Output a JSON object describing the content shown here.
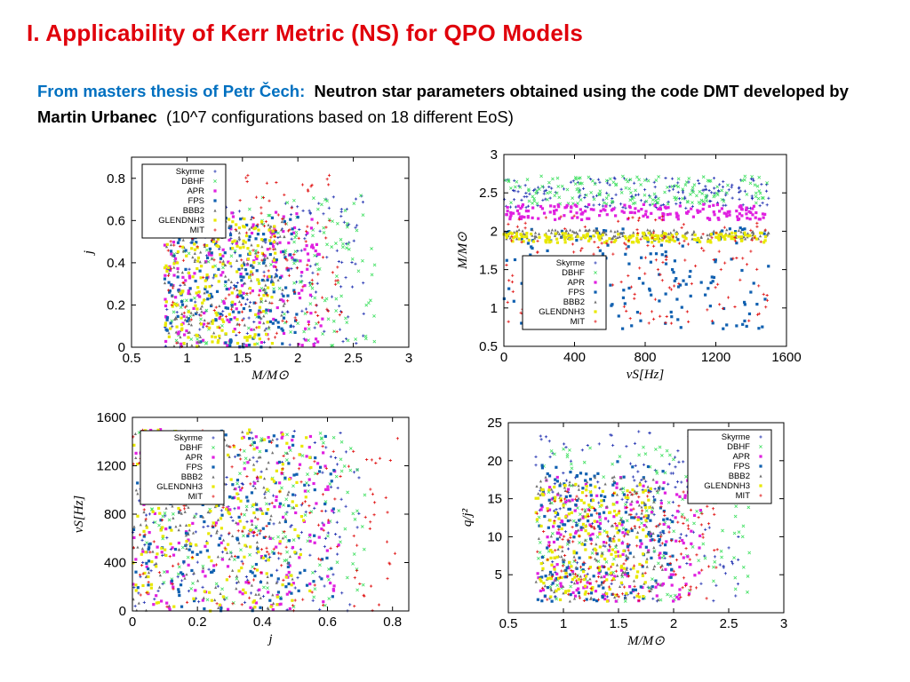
{
  "header": {
    "title": "I. Applicability of Kerr Metric (NS) for QPO Models",
    "intro_blue": "From masters thesis of Petr Čech:",
    "intro_bold": "Neutron star parameters obtained using the code DMT developed by Martin Urbanec",
    "intro_plain": "(10^7 configurations based on 18 different EoS)"
  },
  "chart_data": [
    {
      "type": "scatter",
      "xlabel": "M/M⊙",
      "ylabel": "j",
      "xlim": [
        0.5,
        3
      ],
      "ylim": [
        0,
        0.9
      ],
      "xticks": [
        0.5,
        1,
        1.5,
        2,
        2.5,
        3
      ],
      "yticks": [
        0,
        0.2,
        0.4,
        0.6,
        0.8
      ],
      "legend": "top-left",
      "series": [
        {
          "name": "Skyrme",
          "color": "#1f2fb0",
          "marker": "*",
          "x_range": [
            0.8,
            2.6
          ],
          "y_range": [
            0,
            0.72
          ]
        },
        {
          "name": "DBHF",
          "color": "#3fe060",
          "marker": "x",
          "x_range": [
            0.8,
            2.7
          ],
          "y_range": [
            0,
            0.72
          ]
        },
        {
          "name": "APR",
          "color": "#e020e0",
          "marker": "square",
          "x_range": [
            0.8,
            2.25
          ],
          "y_range": [
            0,
            0.66
          ]
        },
        {
          "name": "FPS",
          "color": "#1060b0",
          "marker": "square",
          "x_range": [
            0.8,
            2.0
          ],
          "y_range": [
            0,
            0.62
          ]
        },
        {
          "name": "BBB2",
          "color": "#707070",
          "marker": "triangle",
          "x_range": [
            0.8,
            1.9
          ],
          "y_range": [
            0,
            0.62
          ]
        },
        {
          "name": "GLENDNH3",
          "color": "#e8e800",
          "marker": "circle",
          "x_range": [
            0.8,
            1.8
          ],
          "y_range": [
            0,
            0.62
          ]
        },
        {
          "name": "MIT",
          "color": "#e01010",
          "marker": "+",
          "x_range": [
            0.8,
            2.4
          ],
          "y_range": [
            0,
            0.82
          ]
        }
      ]
    },
    {
      "type": "scatter",
      "xlabel": "νS[Hz]",
      "ylabel": "M/M⊙",
      "xlim": [
        0,
        1600
      ],
      "ylim": [
        0.5,
        3
      ],
      "xticks": [
        0,
        400,
        800,
        1200,
        1600
      ],
      "yticks": [
        0.5,
        1,
        1.5,
        2,
        2.5,
        3
      ],
      "legend": "center",
      "series": [
        {
          "name": "Skyrme",
          "color": "#1f2fb0",
          "marker": "*",
          "x_range": [
            0,
            1500
          ],
          "y_range": [
            2.3,
            2.7
          ]
        },
        {
          "name": "DBHF",
          "color": "#3fe060",
          "marker": "x",
          "x_range": [
            0,
            1500
          ],
          "y_range": [
            2.35,
            2.72
          ]
        },
        {
          "name": "APR",
          "color": "#e020e0",
          "marker": "square",
          "x_range": [
            0,
            1500
          ],
          "y_range": [
            2.15,
            2.35
          ]
        },
        {
          "name": "FPS",
          "color": "#1060b0",
          "marker": "square",
          "x_range": [
            0,
            1500
          ],
          "y_range": [
            0.7,
            2.05
          ]
        },
        {
          "name": "BBB2",
          "color": "#707070",
          "marker": "triangle",
          "x_range": [
            0,
            1500
          ],
          "y_range": [
            1.9,
            2.02
          ]
        },
        {
          "name": "GLENDNH3",
          "color": "#e8e800",
          "marker": "circle",
          "x_range": [
            0,
            1500
          ],
          "y_range": [
            1.85,
            1.98
          ]
        },
        {
          "name": "MIT",
          "color": "#e01010",
          "marker": "+",
          "x_range": [
            0,
            1500
          ],
          "y_range": [
            0.8,
            2.2
          ]
        }
      ]
    },
    {
      "type": "scatter",
      "xlabel": "j",
      "ylabel": "νS[Hz]",
      "xlim": [
        0,
        0.85
      ],
      "ylim": [
        0,
        1600
      ],
      "xticks": [
        0,
        0.2,
        0.4,
        0.6,
        0.8
      ],
      "yticks": [
        0,
        400,
        800,
        1200,
        1600
      ],
      "legend": "top-left",
      "series": [
        {
          "name": "Skyrme",
          "color": "#1f2fb0",
          "marker": "*",
          "x_range": [
            0,
            0.7
          ],
          "y_range": [
            0,
            1500
          ]
        },
        {
          "name": "DBHF",
          "color": "#3fe060",
          "marker": "x",
          "x_range": [
            0,
            0.72
          ],
          "y_range": [
            0,
            1500
          ]
        },
        {
          "name": "APR",
          "color": "#e020e0",
          "marker": "square",
          "x_range": [
            0,
            0.66
          ],
          "y_range": [
            0,
            1500
          ]
        },
        {
          "name": "FPS",
          "color": "#1060b0",
          "marker": "square",
          "x_range": [
            0,
            0.62
          ],
          "y_range": [
            0,
            1500
          ]
        },
        {
          "name": "BBB2",
          "color": "#707070",
          "marker": "triangle",
          "x_range": [
            0,
            0.5
          ],
          "y_range": [
            0,
            1500
          ]
        },
        {
          "name": "GLENDNH3",
          "color": "#e8e800",
          "marker": "circle",
          "x_range": [
            0,
            0.55
          ],
          "y_range": [
            0,
            1500
          ]
        },
        {
          "name": "MIT",
          "color": "#e01010",
          "marker": "+",
          "x_range": [
            0,
            0.82
          ],
          "y_range": [
            0,
            1500
          ]
        }
      ]
    },
    {
      "type": "scatter",
      "xlabel": "M/M⊙",
      "ylabel": "q/j²",
      "xlim": [
        0.5,
        3
      ],
      "ylim": [
        0,
        25
      ],
      "xticks": [
        0.5,
        1,
        1.5,
        2,
        2.5,
        3
      ],
      "yticks": [
        5,
        10,
        15,
        20,
        25
      ],
      "legend": "top-right",
      "series": [
        {
          "name": "Skyrme",
          "color": "#1f2fb0",
          "marker": "*",
          "x_range": [
            0.75,
            2.6
          ],
          "y_range": [
            1.5,
            24
          ]
        },
        {
          "name": "DBHF",
          "color": "#3fe060",
          "marker": "x",
          "x_range": [
            0.75,
            2.7
          ],
          "y_range": [
            1.5,
            22
          ]
        },
        {
          "name": "APR",
          "color": "#e020e0",
          "marker": "square",
          "x_range": [
            0.75,
            2.25
          ],
          "y_range": [
            1.5,
            18
          ]
        },
        {
          "name": "FPS",
          "color": "#1060b0",
          "marker": "square",
          "x_range": [
            0.75,
            2.0
          ],
          "y_range": [
            1.5,
            20
          ]
        },
        {
          "name": "BBB2",
          "color": "#707070",
          "marker": "triangle",
          "x_range": [
            0.75,
            1.9
          ],
          "y_range": [
            1.5,
            18
          ]
        },
        {
          "name": "GLENDNH3",
          "color": "#e8e800",
          "marker": "circle",
          "x_range": [
            0.75,
            1.8
          ],
          "y_range": [
            1.5,
            17
          ]
        },
        {
          "name": "MIT",
          "color": "#e01010",
          "marker": "+",
          "x_range": [
            0.75,
            2.4
          ],
          "y_range": [
            1.5,
            16
          ]
        }
      ]
    }
  ]
}
